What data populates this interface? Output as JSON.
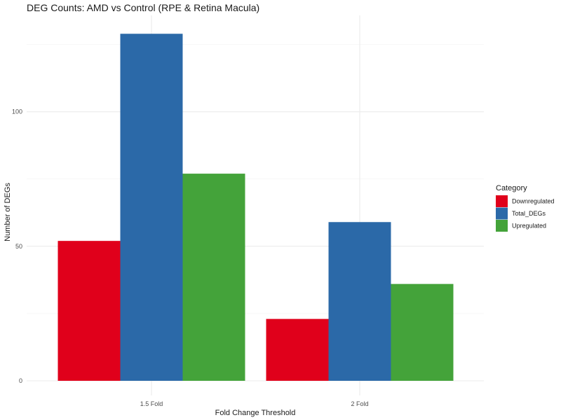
{
  "chart_data": {
    "type": "bar",
    "title": "DEG Counts: AMD vs Control (RPE & Retina Macula)",
    "xlabel": "Fold Change Threshold",
    "ylabel": "Number of DEGs",
    "categories": [
      "1.5 Fold",
      "2 Fold"
    ],
    "series": [
      {
        "name": "Downregulated",
        "values": [
          52,
          23
        ],
        "color": "#E0001B"
      },
      {
        "name": "Total_DEGs",
        "values": [
          129,
          59
        ],
        "color": "#2B69A8"
      },
      {
        "name": "Upregulated",
        "values": [
          77,
          36
        ],
        "color": "#44A33A"
      }
    ],
    "ylim": [
      0,
      129
    ],
    "yticks": [
      0,
      50,
      100
    ],
    "grid": true,
    "legend": {
      "title": "Category",
      "position": "right"
    }
  }
}
